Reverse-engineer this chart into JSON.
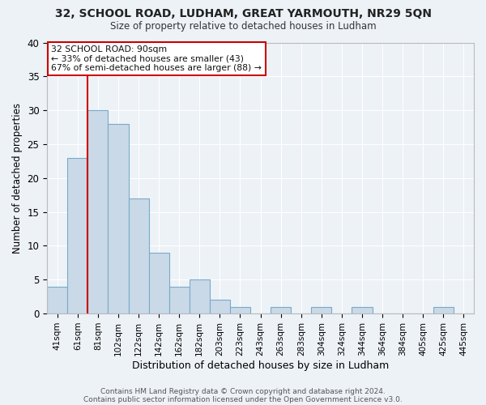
{
  "title": "32, SCHOOL ROAD, LUDHAM, GREAT YARMOUTH, NR29 5QN",
  "subtitle": "Size of property relative to detached houses in Ludham",
  "xlabel": "Distribution of detached houses by size in Ludham",
  "ylabel": "Number of detached properties",
  "bar_labels": [
    "41sqm",
    "61sqm",
    "81sqm",
    "102sqm",
    "122sqm",
    "142sqm",
    "162sqm",
    "182sqm",
    "203sqm",
    "223sqm",
    "243sqm",
    "263sqm",
    "283sqm",
    "304sqm",
    "324sqm",
    "344sqm",
    "364sqm",
    "384sqm",
    "405sqm",
    "425sqm",
    "445sqm"
  ],
  "bar_values": [
    4,
    23,
    30,
    28,
    17,
    9,
    4,
    5,
    2,
    1,
    0,
    1,
    0,
    1,
    0,
    1,
    0,
    0,
    0,
    1,
    0
  ],
  "bar_color": "#c9d9e8",
  "bar_edge_color": "#7aaac8",
  "background_color": "#edf2f7",
  "grid_color": "#ffffff",
  "vline_color": "#cc0000",
  "vline_x_index": 2,
  "annotation_title": "32 SCHOOL ROAD: 90sqm",
  "annotation_line1": "← 33% of detached houses are smaller (43)",
  "annotation_line2": "67% of semi-detached houses are larger (88) →",
  "annotation_box_edge": "#cc0000",
  "annotation_box_bg": "#ffffff",
  "ylim": [
    0,
    40
  ],
  "yticks": [
    0,
    5,
    10,
    15,
    20,
    25,
    30,
    35,
    40
  ],
  "footer1": "Contains HM Land Registry data © Crown copyright and database right 2024.",
  "footer2": "Contains public sector information licensed under the Open Government Licence v3.0."
}
